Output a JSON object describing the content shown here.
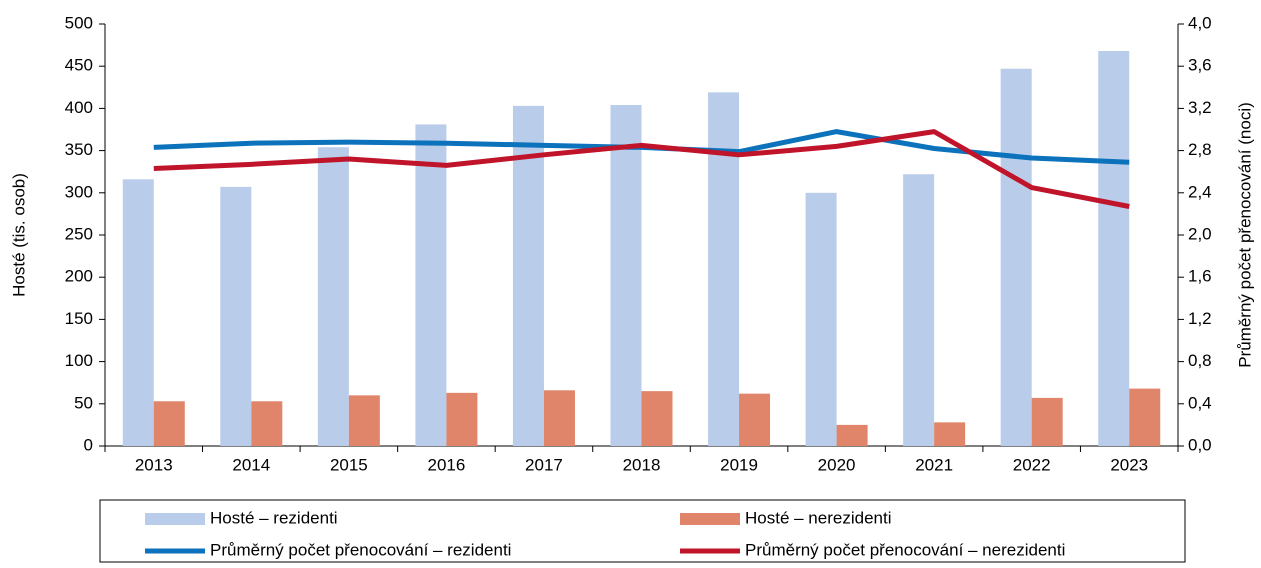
{
  "chart_data": {
    "type": "bar",
    "y_label": "Hosté (tis. osob)",
    "y2_label": "Průměrný počet přenocování (noci)",
    "categories": [
      "2013",
      "2014",
      "2015",
      "2016",
      "2017",
      "2018",
      "2019",
      "2020",
      "2021",
      "2022",
      "2023"
    ],
    "series": [
      {
        "name": "Hosté – rezidenti",
        "type": "bar",
        "color": "#b9cce9",
        "values": [
          316,
          307,
          354,
          381,
          403,
          404,
          419,
          300,
          322,
          447,
          468
        ]
      },
      {
        "name": "Hosté – nerezidenti",
        "type": "bar",
        "color": "#e0856a",
        "values": [
          53,
          53,
          60,
          63,
          66,
          65,
          62,
          25,
          28,
          57,
          68
        ]
      },
      {
        "name": "Průměrný počet přenocování – rezidenti",
        "type": "line",
        "axis": "y2",
        "color": "#0b72bb",
        "values": [
          2.83,
          2.87,
          2.88,
          2.87,
          2.85,
          2.83,
          2.79,
          2.98,
          2.82,
          2.73,
          2.69
        ]
      },
      {
        "name": "Průměrný počet přenocování – nerezidenti",
        "type": "line",
        "axis": "y2",
        "color": "#c0142a",
        "values": [
          2.63,
          2.67,
          2.72,
          2.66,
          2.76,
          2.85,
          2.76,
          2.84,
          2.98,
          2.45,
          2.27
        ]
      }
    ],
    "ylim": [
      0,
      500
    ],
    "yticks": [
      0,
      50,
      100,
      150,
      200,
      250,
      300,
      350,
      400,
      450,
      500
    ],
    "y2lim": [
      0,
      4
    ],
    "y2ticks": [
      {
        "value": 0,
        "label": "0,0"
      },
      {
        "value": 0.4,
        "label": "0,4"
      },
      {
        "value": 0.8,
        "label": "0,8"
      },
      {
        "value": 1.2,
        "label": "1,2"
      },
      {
        "value": 1.6,
        "label": "1,6"
      },
      {
        "value": 2,
        "label": "2,0"
      },
      {
        "value": 2.4,
        "label": "2,4"
      },
      {
        "value": 2.8,
        "label": "2,8"
      },
      {
        "value": 3.2,
        "label": "3,2"
      },
      {
        "value": 3.6,
        "label": "3,6"
      },
      {
        "value": 4,
        "label": "4,0"
      }
    ]
  }
}
